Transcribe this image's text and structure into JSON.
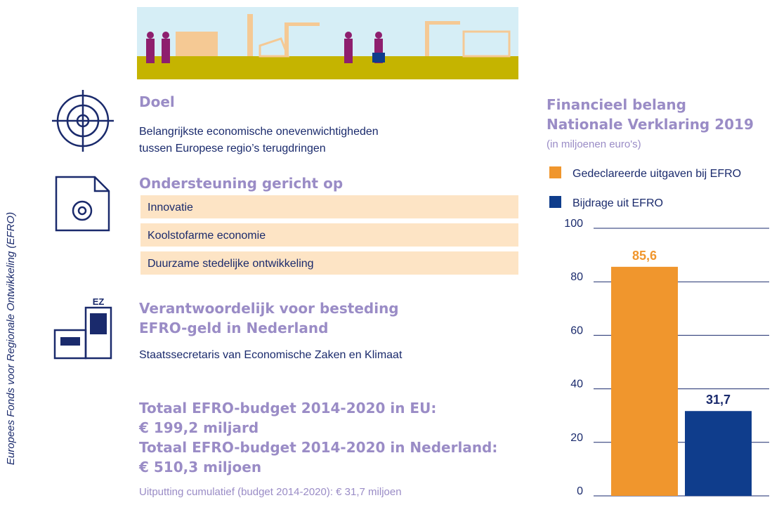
{
  "sidebar": "Europees Fonds voor Regionale Ontwikkeling (EFRO)",
  "doel": {
    "title": "Doel",
    "text": [
      "Belangrijkste economische onevenwichtigheden",
      "tussen Europese regio’s terugdringen"
    ]
  },
  "ondersteuning": {
    "title": "Ondersteuning gericht op",
    "items": [
      "Innovatie",
      "Koolstofarme economie",
      "Duurzame stedelijke ontwikkeling"
    ]
  },
  "verantwoordelijk": {
    "icon_label": "EZ",
    "title": [
      "Verantwoordelijk voor besteding",
      "EFRO-geld in Nederland"
    ],
    "text": "Staatssecretaris van Economische Zaken en Klimaat"
  },
  "budget": {
    "lines": [
      "Totaal EFRO-budget 2014-2020 in EU:",
      "€ 199,2 miljard",
      "Totaal EFRO-budget 2014-2020 in Nederland:",
      "€ 510,3 miljoen"
    ],
    "note": "Uitputting cumulatief (budget 2014-2020): € 31,7 miljoen"
  },
  "chart_data": {
    "type": "bar",
    "title": [
      "Financieel belang",
      "Nationale Verklaring 2019"
    ],
    "subtitle": "(in miljoenen euro's)",
    "categories": [
      null
    ],
    "series": [
      {
        "name": "Gedeclareerde uitgaven bij EFRO",
        "color": "#f0962d",
        "values": [
          85.6
        ],
        "value_labels": [
          "85,6"
        ]
      },
      {
        "name": "Bijdrage uit EFRO",
        "color": "#0f3d8c",
        "values": [
          31.7
        ],
        "value_labels": [
          "31,7"
        ]
      }
    ],
    "ylim": [
      0,
      100
    ],
    "yticks": [
      0,
      20,
      40,
      60,
      80,
      100
    ],
    "grid": true
  }
}
